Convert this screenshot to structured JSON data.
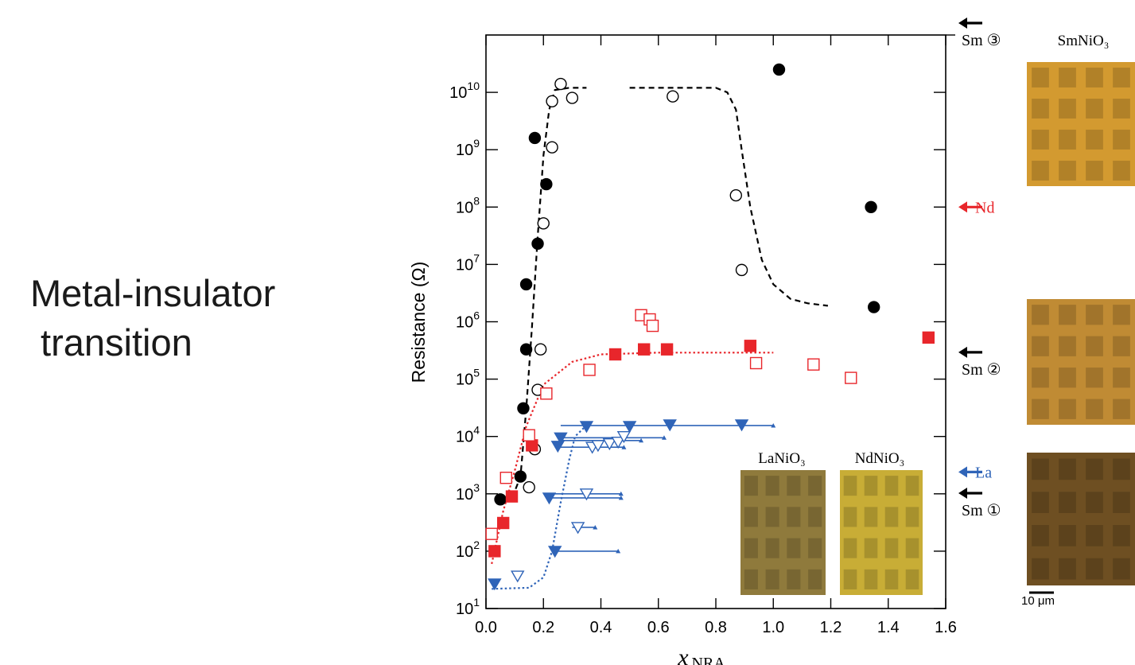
{
  "slide": {
    "title_line1": "Metal-insulator",
    "title_line2": " transition"
  },
  "chart_data": {
    "type": "scatter",
    "title": "",
    "xlabel": "x",
    "xlabel_sub": "NRA",
    "ylabel": "Resistance (Ω)",
    "xlim": [
      0.0,
      1.6
    ],
    "ylim_log10": [
      1,
      11
    ],
    "y_scale": "log",
    "x_ticks": [
      "0.0",
      "0.2",
      "0.4",
      "0.6",
      "0.8",
      "1.0",
      "1.2",
      "1.4",
      "1.6"
    ],
    "y_ticks": [
      {
        "base": "10",
        "exp": "1"
      },
      {
        "base": "10",
        "exp": "2"
      },
      {
        "base": "10",
        "exp": "3"
      },
      {
        "base": "10",
        "exp": "4"
      },
      {
        "base": "10",
        "exp": "5"
      },
      {
        "base": "10",
        "exp": "6"
      },
      {
        "base": "10",
        "exp": "7"
      },
      {
        "base": "10",
        "exp": "8"
      },
      {
        "base": "10",
        "exp": "9"
      },
      {
        "base": "10",
        "exp": "10"
      }
    ],
    "colors": {
      "sm": "#000000",
      "nd": "#e8262b",
      "la": "#2f64b8"
    },
    "series": [
      {
        "marker": "filled-circle",
        "color": "#000000",
        "points": [
          [
            0.05,
            800
          ],
          [
            0.12,
            2000
          ],
          [
            0.13,
            31000
          ],
          [
            0.14,
            330000
          ],
          [
            0.14,
            4500000
          ],
          [
            0.18,
            23000000
          ],
          [
            0.21,
            250000000
          ],
          [
            0.17,
            1600000000
          ],
          [
            1.02,
            25000000000
          ],
          [
            1.34,
            100000000
          ],
          [
            1.35,
            1800000
          ]
        ]
      },
      {
        "marker": "open-circle",
        "color": "#000000",
        "points": [
          [
            0.15,
            1300
          ],
          [
            0.17,
            6000
          ],
          [
            0.18,
            65000
          ],
          [
            0.19,
            330000
          ],
          [
            0.2,
            52000000
          ],
          [
            0.23,
            1100000000
          ],
          [
            0.23,
            7000000000
          ],
          [
            0.26,
            14000000000
          ],
          [
            0.3,
            8000000000
          ],
          [
            0.65,
            8500000000
          ],
          [
            0.87,
            160000000
          ],
          [
            0.89,
            8000000
          ]
        ]
      },
      {
        "marker": "filled-square",
        "color": "#e8262b",
        "points": [
          [
            0.03,
            100
          ],
          [
            0.06,
            310
          ],
          [
            0.09,
            900
          ],
          [
            0.16,
            7000
          ],
          [
            0.45,
            270000
          ],
          [
            0.55,
            330000
          ],
          [
            0.63,
            330000
          ],
          [
            0.92,
            380000
          ],
          [
            1.54,
            530000
          ]
        ]
      },
      {
        "marker": "open-square",
        "color": "#e8262b",
        "points": [
          [
            0.02,
            200
          ],
          [
            0.07,
            1900
          ],
          [
            0.15,
            10500
          ],
          [
            0.21,
            56000
          ],
          [
            0.36,
            145000
          ],
          [
            0.54,
            1300000
          ],
          [
            0.57,
            1100000
          ],
          [
            0.58,
            850000
          ],
          [
            0.94,
            190000
          ],
          [
            1.14,
            180000
          ],
          [
            1.27,
            105000
          ]
        ]
      },
      {
        "marker": "filled-triangle-down",
        "color": "#2f64b8",
        "points": [
          [
            0.03,
            27
          ],
          [
            0.24,
            100
          ],
          [
            0.22,
            850
          ],
          [
            0.25,
            6800
          ],
          [
            0.26,
            9500
          ],
          [
            0.35,
            15000
          ],
          [
            0.5,
            15000
          ],
          [
            0.64,
            16000
          ],
          [
            0.89,
            16000
          ]
        ]
      },
      {
        "marker": "open-triangle-down",
        "color": "#2f64b8",
        "points": [
          [
            0.11,
            37
          ],
          [
            0.32,
            260
          ],
          [
            0.35,
            1000
          ],
          [
            0.37,
            6500
          ],
          [
            0.39,
            7000
          ],
          [
            0.43,
            7500
          ],
          [
            0.46,
            8000
          ],
          [
            0.48,
            10000
          ]
        ]
      }
    ],
    "range_bars": [
      {
        "x1": 0.24,
        "x2": 0.46,
        "y": 100
      },
      {
        "x1": 0.22,
        "x2": 0.47,
        "y": 850
      },
      {
        "x1": 0.24,
        "x2": 0.47,
        "y": 1000
      },
      {
        "x1": 0.3,
        "x2": 0.38,
        "y": 260
      },
      {
        "x1": 0.24,
        "x2": 0.48,
        "y": 6500
      },
      {
        "x1": 0.26,
        "x2": 0.54,
        "y": 8500
      },
      {
        "x1": 0.26,
        "x2": 0.62,
        "y": 9500
      },
      {
        "x1": 0.26,
        "x2": 1.0,
        "y": 15500
      }
    ],
    "fit_curves": [
      {
        "color": "#000000",
        "dash": "dashed",
        "points": [
          [
            0.05,
            800
          ],
          [
            0.1,
            1100
          ],
          [
            0.12,
            2000
          ],
          [
            0.14,
            30000
          ],
          [
            0.16,
            800000
          ],
          [
            0.18,
            30000000
          ],
          [
            0.2,
            800000000
          ],
          [
            0.22,
            5000000000
          ],
          [
            0.24,
            11000000000
          ],
          [
            0.29,
            12000000000
          ],
          [
            0.35,
            12000000000
          ]
        ]
      },
      {
        "color": "#000000",
        "dash": "dashed",
        "points": [
          [
            0.5,
            12000000000
          ],
          [
            0.8,
            12000000000
          ],
          [
            0.84,
            10000000000
          ],
          [
            0.87,
            5000000000
          ],
          [
            0.89,
            1000000000
          ],
          [
            0.92,
            100000000
          ],
          [
            0.96,
            12000000
          ],
          [
            1.0,
            4500000
          ],
          [
            1.06,
            2500000
          ],
          [
            1.12,
            2100000
          ],
          [
            1.19,
            1900000
          ]
        ]
      },
      {
        "color": "#e8262b",
        "dash": "dotted",
        "points": [
          [
            0.02,
            60
          ],
          [
            0.06,
            500
          ],
          [
            0.1,
            2500
          ],
          [
            0.14,
            15000
          ],
          [
            0.2,
            80000
          ],
          [
            0.3,
            200000
          ],
          [
            0.4,
            270000
          ],
          [
            0.6,
            290000
          ],
          [
            1.0,
            290000
          ]
        ]
      },
      {
        "color": "#2f64b8",
        "dash": "dotted",
        "points": [
          [
            0.02,
            22
          ],
          [
            0.15,
            23
          ],
          [
            0.2,
            35
          ],
          [
            0.23,
            100
          ],
          [
            0.26,
            700
          ],
          [
            0.29,
            4000
          ],
          [
            0.31,
            10000
          ],
          [
            0.34,
            14000
          ]
        ]
      }
    ],
    "right_markers": [
      {
        "label": "Sm ③",
        "color": "#000000",
        "y": 110000000000
      },
      {
        "label": "Nd",
        "color": "#e8262b",
        "y": 100000000
      },
      {
        "label": "Sm ②",
        "color": "#000000",
        "y": 200000
      },
      {
        "label": "La",
        "color": "#2f64b8",
        "y": 2400
      },
      {
        "label": "Sm ①",
        "color": "#000000",
        "y": 700
      }
    ],
    "inset_labels": {
      "la": "LaNiO₃",
      "nd": "NdNiO₃",
      "sm": "SmNiO₃",
      "scale": "10 μm"
    },
    "micrograph_colors": {
      "la": "#8f7a3c",
      "nd": "#c8ad36",
      "sm_top": "#d39a30",
      "sm_mid": "#c08b34",
      "sm_bottom": "#6e4f22"
    }
  }
}
